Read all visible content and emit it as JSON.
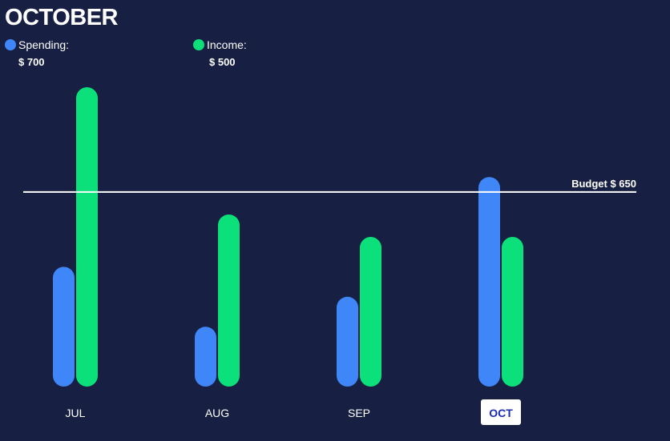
{
  "header": {
    "title": "OCTOBER"
  },
  "legend": [
    {
      "label": "Spending:",
      "value": "$ 700",
      "color": "#3f86f8"
    },
    {
      "label": "Income:",
      "value": "$ 500",
      "color": "#0ce07a"
    }
  ],
  "budget": {
    "label": "Budget $ 650",
    "value": 650
  },
  "selected_month": "OCT",
  "chart_data": {
    "type": "bar",
    "categories": [
      "JUL",
      "AUG",
      "SEP",
      "OCT"
    ],
    "series": [
      {
        "name": "Spending",
        "color": "#3f86f8",
        "values": [
          400,
          200,
          300,
          700
        ]
      },
      {
        "name": "Income",
        "color": "#0ce07a",
        "values": [
          1000,
          575,
          500,
          500
        ]
      }
    ],
    "ylim": [
      0,
      1000
    ],
    "reference_line": {
      "label": "Budget $ 650",
      "value": 650
    },
    "grid": false,
    "legend_position": "top-left"
  }
}
